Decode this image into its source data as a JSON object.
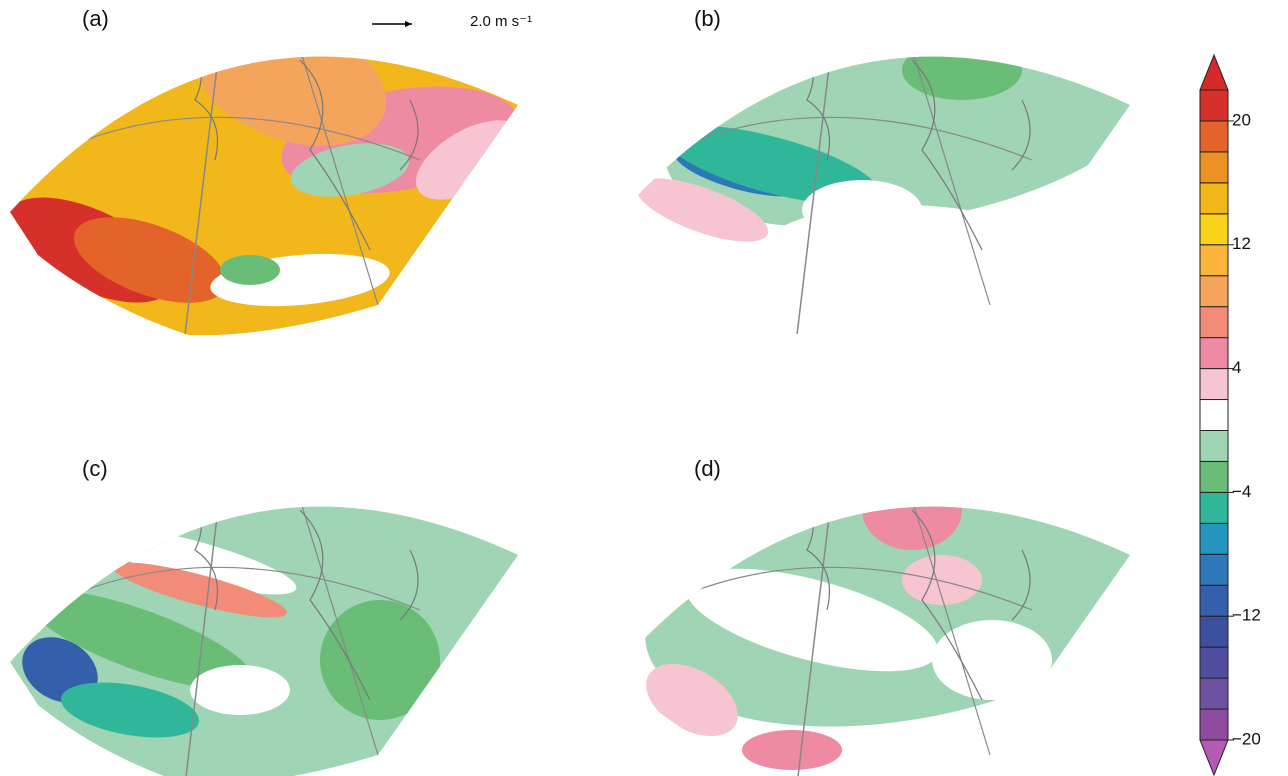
{
  "panels": [
    {
      "label": "(a)"
    },
    {
      "label": "(b)"
    },
    {
      "label": "(c)"
    },
    {
      "label": "(d)"
    }
  ],
  "reference_vector": {
    "label": "2.0 m s⁻¹"
  },
  "colorbar": {
    "lim": [
      -20,
      22
    ],
    "ticks": [
      {
        "value": -20,
        "label": "−20"
      },
      {
        "value": -12,
        "label": "−12"
      },
      {
        "value": -4,
        "label": "−4"
      },
      4,
      12,
      20
    ],
    "colors": [
      "#8d4a9e",
      "#6e52a2",
      "#514ea0",
      "#3d4f9f",
      "#345fab",
      "#2d78b7",
      "#2495bf",
      "#30b79a",
      "#6abd76",
      "#9fd4b4",
      "#ffffff",
      "#f7c4d2",
      "#ee8aa2",
      "#f28c78",
      "#f5a45c",
      "#f9b53c",
      "#f7d319",
      "#f2b81b",
      "#ec9222",
      "#e3632a",
      "#d5302a"
    ],
    "extend_colors": [
      "#b45ab4",
      "#d42a2a"
    ]
  }
}
